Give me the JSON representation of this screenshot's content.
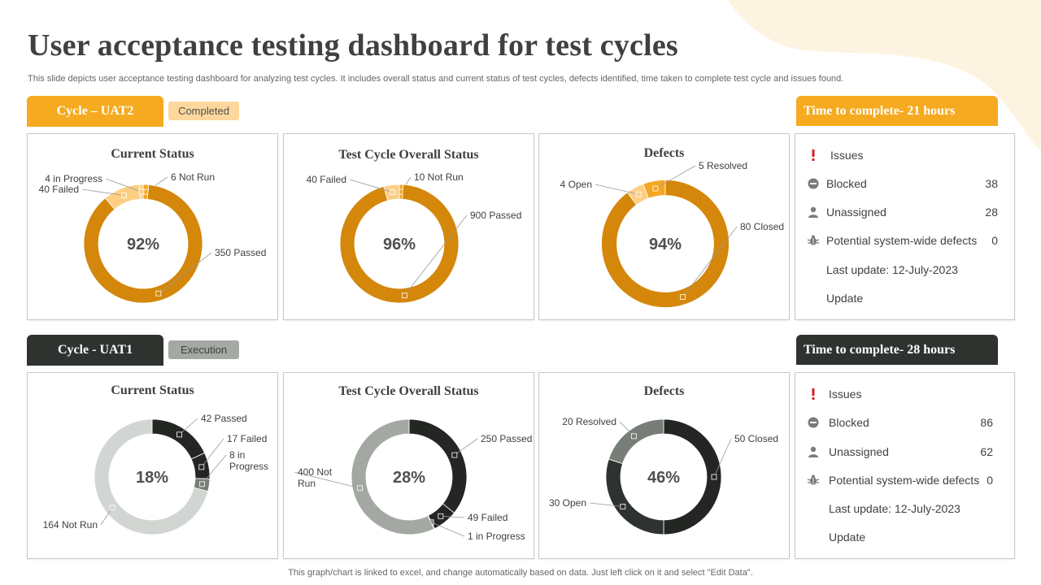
{
  "header": {
    "title": "User acceptance testing dashboard for test cycles",
    "subtitle": "This slide depicts user acceptance testing dashboard for analyzing test cycles. It includes overall status and current status of test cycles, defects identified, time taken to complete test cycle and issues found."
  },
  "footer": "This graph/chart is linked to excel,  and change automatically based on data. Just left click on it and select \"Edit Data\".",
  "colors": {
    "amber": "#D4870A",
    "amber_mid": "#F5A623",
    "amber_light": "#FCCF85",
    "dark": "#232623",
    "gray_mid": "#767E77",
    "gray_light": "#D2D6D2",
    "gray_soft": "#A3A8A2"
  },
  "cycles": [
    {
      "name": "Cycle – UAT2",
      "status": "Completed",
      "time_to_complete": "Time to complete- 21 hours",
      "issues": {
        "heading": "Issues",
        "rows": [
          {
            "label": "Blocked",
            "value": "38",
            "icon": "blocked-icon"
          },
          {
            "label": "Unassigned",
            "value": "28",
            "icon": "user-icon"
          },
          {
            "label": "Potential system-wide defects",
            "value": "0",
            "icon": "bug-icon"
          }
        ],
        "last_update": "Last update: 12-July-2023",
        "update_label": "Update"
      }
    },
    {
      "name": "Cycle - UAT1",
      "status": "Execution",
      "time_to_complete": "Time to complete- 28 hours",
      "issues": {
        "heading": "Issues",
        "rows": [
          {
            "label": "Blocked",
            "value": "86",
            "icon": "blocked-icon"
          },
          {
            "label": "Unassigned",
            "value": "62",
            "icon": "user-icon"
          },
          {
            "label": "Potential system-wide defects",
            "value": "0",
            "icon": "bug-icon"
          }
        ],
        "last_update": "Last update: 12-July-2023",
        "update_label": "Update"
      }
    }
  ],
  "chart_data": [
    {
      "type": "pie",
      "cycle": "UAT2",
      "title": "Current Status",
      "center_label": "92%",
      "slices": [
        {
          "label": "6 Not Run",
          "value": 6,
          "color": "#F5A623"
        },
        {
          "label": "350 Passed",
          "value": 350,
          "color": "#D4870A"
        },
        {
          "label": "40 Failed",
          "value": 40,
          "color": "#FCCF85"
        },
        {
          "label": "4 in Progress",
          "value": 4,
          "color": "#FCCF85"
        }
      ]
    },
    {
      "type": "pie",
      "cycle": "UAT2",
      "title": "Test Cycle Overall Status",
      "center_label": "96%",
      "slices": [
        {
          "label": "10 Not Run",
          "value": 10,
          "color": "#F5A623"
        },
        {
          "label": "900 Passed",
          "value": 900,
          "color": "#D4870A"
        },
        {
          "label": "40 Failed",
          "value": 40,
          "color": "#FCCF85"
        }
      ]
    },
    {
      "type": "pie",
      "cycle": "UAT2",
      "title": "Defects",
      "center_label": "94%",
      "slices": [
        {
          "label": "80 Closed",
          "value": 80,
          "color": "#D4870A"
        },
        {
          "label": "4 Open",
          "value": 4,
          "color": "#FCCF85"
        },
        {
          "label": "5 Resolved",
          "value": 5,
          "color": "#F5A623"
        }
      ]
    },
    {
      "type": "pie",
      "cycle": "UAT1",
      "title": "Current Status",
      "center_label": "18%",
      "slices": [
        {
          "label": "42 Passed",
          "value": 42,
          "color": "#232623"
        },
        {
          "label": "17 Failed",
          "value": 17,
          "color": "#232623"
        },
        {
          "label": "8 in\nProgress",
          "value": 8,
          "color": "#767E77"
        },
        {
          "label": "164 Not Run",
          "value": 164,
          "color": "#D2D6D2"
        }
      ]
    },
    {
      "type": "pie",
      "cycle": "UAT1",
      "title": "Test Cycle Overall Status",
      "center_label": "28%",
      "slices": [
        {
          "label": "250 Passed",
          "value": 250,
          "color": "#232623"
        },
        {
          "label": "49 Failed",
          "value": 49,
          "color": "#232623"
        },
        {
          "label": "1 in Progress",
          "value": 1,
          "color": "#767E77"
        },
        {
          "label": "400 Not\nRun",
          "value": 400,
          "color": "#A3A8A2"
        }
      ]
    },
    {
      "type": "pie",
      "cycle": "UAT1",
      "title": "Defects",
      "center_label": "46%",
      "slices": [
        {
          "label": "50 Closed",
          "value": 50,
          "color": "#232623"
        },
        {
          "label": "30 Open",
          "value": 30,
          "color": "#2E3330"
        },
        {
          "label": "20 Resolved",
          "value": 20,
          "color": "#767E77"
        }
      ]
    }
  ]
}
